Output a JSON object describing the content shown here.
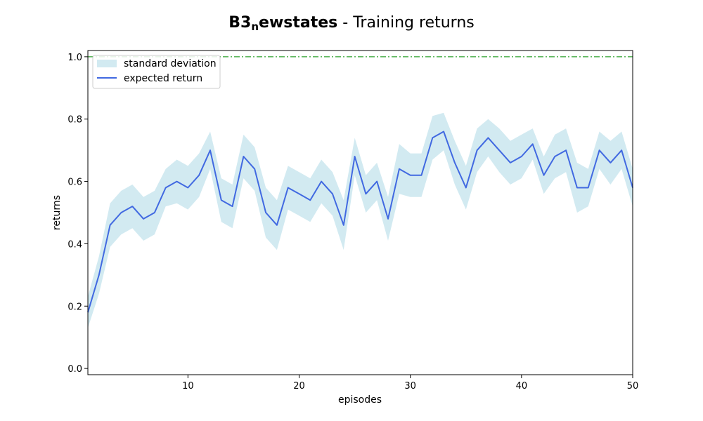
{
  "title": {
    "bold_main": "B3",
    "bold_sub": "n",
    "bold_rest": "ewstates",
    "rest": " - Training returns"
  },
  "chart_data": {
    "type": "line",
    "xlabel": "episodes",
    "ylabel": "returns",
    "xlim": [
      1,
      50
    ],
    "ylim": [
      -0.02,
      1.02
    ],
    "xticks": [
      10,
      20,
      30,
      40,
      50
    ],
    "yticks": [
      0.0,
      0.2,
      0.4,
      0.6,
      0.8,
      1.0
    ],
    "ytick_labels": [
      "0.0",
      "0.2",
      "0.4",
      "0.6",
      "0.8",
      "1.0"
    ],
    "grid": false,
    "legend_position": "top-left",
    "reference_line": {
      "y": 1.0,
      "color": "#2ca02c",
      "style": "dash-dot"
    },
    "series": [
      {
        "name": "expected return",
        "color": "#4169e1",
        "x": [
          1,
          2,
          3,
          4,
          5,
          6,
          7,
          8,
          9,
          10,
          11,
          12,
          13,
          14,
          15,
          16,
          17,
          18,
          19,
          20,
          21,
          22,
          23,
          24,
          25,
          26,
          27,
          28,
          29,
          30,
          31,
          32,
          33,
          34,
          35,
          36,
          37,
          38,
          39,
          40,
          41,
          42,
          43,
          44,
          45,
          46,
          47,
          48,
          49,
          50
        ],
        "y": [
          0.18,
          0.3,
          0.46,
          0.5,
          0.52,
          0.48,
          0.5,
          0.58,
          0.6,
          0.58,
          0.62,
          0.7,
          0.54,
          0.52,
          0.68,
          0.64,
          0.5,
          0.46,
          0.58,
          0.56,
          0.54,
          0.6,
          0.56,
          0.46,
          0.68,
          0.56,
          0.6,
          0.48,
          0.64,
          0.62,
          0.62,
          0.74,
          0.76,
          0.66,
          0.58,
          0.7,
          0.74,
          0.7,
          0.66,
          0.68,
          0.72,
          0.62,
          0.68,
          0.7,
          0.58,
          0.58,
          0.7,
          0.66,
          0.7,
          0.58
        ]
      },
      {
        "name": "standard deviation",
        "type": "band",
        "color": "#add8e6",
        "x": [
          1,
          2,
          3,
          4,
          5,
          6,
          7,
          8,
          9,
          10,
          11,
          12,
          13,
          14,
          15,
          16,
          17,
          18,
          19,
          20,
          21,
          22,
          23,
          24,
          25,
          26,
          27,
          28,
          29,
          30,
          31,
          32,
          33,
          34,
          35,
          36,
          37,
          38,
          39,
          40,
          41,
          42,
          43,
          44,
          45,
          46,
          47,
          48,
          49,
          50
        ],
        "upper": [
          0.23,
          0.36,
          0.53,
          0.57,
          0.59,
          0.55,
          0.57,
          0.64,
          0.67,
          0.65,
          0.69,
          0.76,
          0.61,
          0.59,
          0.75,
          0.71,
          0.58,
          0.54,
          0.65,
          0.63,
          0.61,
          0.67,
          0.63,
          0.54,
          0.74,
          0.62,
          0.66,
          0.55,
          0.72,
          0.69,
          0.69,
          0.81,
          0.82,
          0.73,
          0.65,
          0.77,
          0.8,
          0.77,
          0.73,
          0.75,
          0.77,
          0.68,
          0.75,
          0.77,
          0.66,
          0.64,
          0.76,
          0.73,
          0.76,
          0.64
        ],
        "lower": [
          0.13,
          0.24,
          0.39,
          0.43,
          0.45,
          0.41,
          0.43,
          0.52,
          0.53,
          0.51,
          0.55,
          0.64,
          0.47,
          0.45,
          0.61,
          0.57,
          0.42,
          0.38,
          0.51,
          0.49,
          0.47,
          0.53,
          0.49,
          0.38,
          0.62,
          0.5,
          0.54,
          0.41,
          0.56,
          0.55,
          0.55,
          0.67,
          0.7,
          0.59,
          0.51,
          0.63,
          0.68,
          0.63,
          0.59,
          0.61,
          0.67,
          0.56,
          0.61,
          0.63,
          0.5,
          0.52,
          0.64,
          0.59,
          0.64,
          0.52
        ]
      }
    ]
  }
}
